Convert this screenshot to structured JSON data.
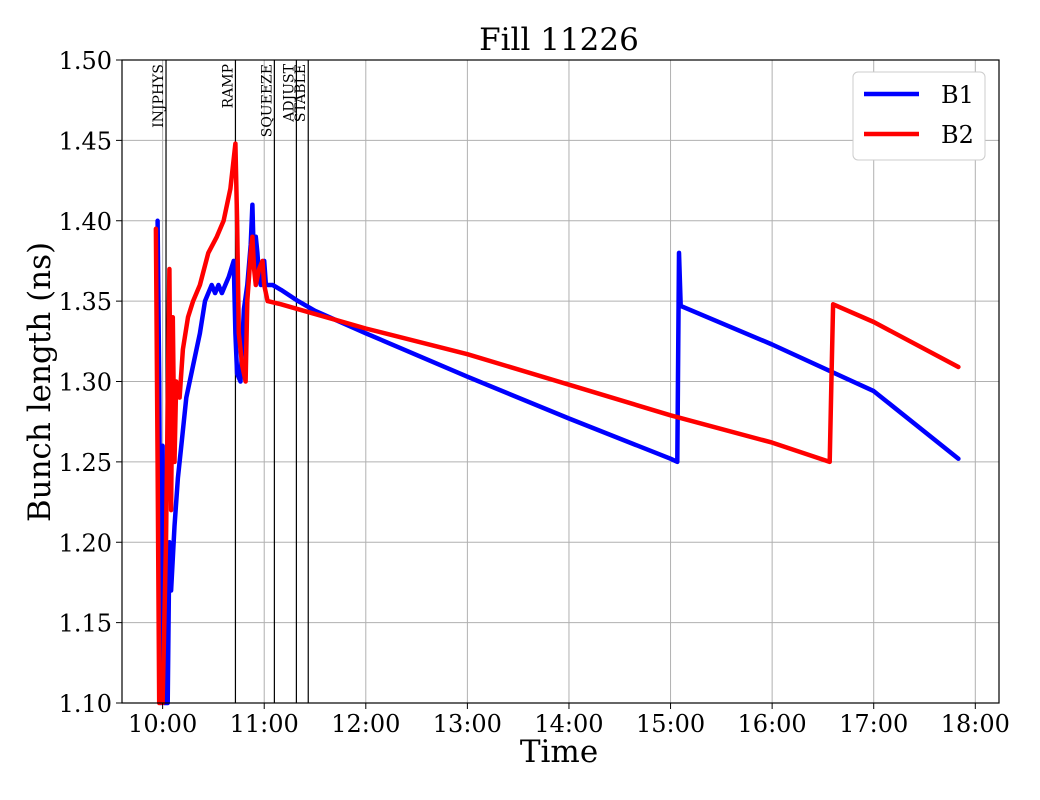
{
  "chart_data": {
    "type": "line",
    "title": "Fill 11226",
    "xlabel": "Time",
    "ylabel": "Bunch length (ns)",
    "xlim": [
      "09:36",
      "18:14"
    ],
    "ylim": [
      1.1,
      1.5
    ],
    "x_ticks": [
      "10:00",
      "11:00",
      "12:00",
      "13:00",
      "14:00",
      "15:00",
      "16:00",
      "17:00",
      "18:00"
    ],
    "y_ticks": [
      "1.10",
      "1.15",
      "1.20",
      "1.25",
      "1.30",
      "1.35",
      "1.40",
      "1.45",
      "1.50"
    ],
    "grid": true,
    "legend_position": "top-right",
    "phases": [
      {
        "label": "INJPHYS",
        "time": "10:02"
      },
      {
        "label": "RAMP",
        "time": "10:43"
      },
      {
        "label": "SQUEEZE",
        "time": "11:06"
      },
      {
        "label": "ADJUST",
        "time": "11:19"
      },
      {
        "label": "STABLE",
        "time": "11:26"
      }
    ],
    "series": [
      {
        "name": "B1",
        "color": "#0000ff",
        "points": [
          [
            "09:57",
            1.4
          ],
          [
            "09:58",
            1.3
          ],
          [
            "09:59",
            1.1
          ],
          [
            "10:00",
            1.26
          ],
          [
            "10:01",
            1.1
          ],
          [
            "10:03",
            1.1
          ],
          [
            "10:04",
            1.2
          ],
          [
            "10:05",
            1.17
          ],
          [
            "10:07",
            1.21
          ],
          [
            "10:09",
            1.24
          ],
          [
            "10:11",
            1.26
          ],
          [
            "10:14",
            1.29
          ],
          [
            "10:18",
            1.31
          ],
          [
            "10:22",
            1.33
          ],
          [
            "10:25",
            1.35
          ],
          [
            "10:27",
            1.355
          ],
          [
            "10:29",
            1.36
          ],
          [
            "10:31",
            1.355
          ],
          [
            "10:33",
            1.36
          ],
          [
            "10:35",
            1.355
          ],
          [
            "10:37",
            1.36
          ],
          [
            "10:39",
            1.365
          ],
          [
            "10:42",
            1.375
          ],
          [
            "10:43",
            1.33
          ],
          [
            "10:44",
            1.305
          ],
          [
            "10:46",
            1.3
          ],
          [
            "10:48",
            1.345
          ],
          [
            "10:50",
            1.36
          ],
          [
            "10:52",
            1.385
          ],
          [
            "10:53",
            1.41
          ],
          [
            "10:54",
            1.37
          ],
          [
            "10:55",
            1.39
          ],
          [
            "10:56",
            1.38
          ],
          [
            "10:57",
            1.365
          ],
          [
            "10:58",
            1.36
          ],
          [
            "10:59",
            1.37
          ],
          [
            "11:00",
            1.375
          ],
          [
            "11:01",
            1.36
          ],
          [
            "11:02",
            1.36
          ],
          [
            "11:05",
            1.36
          ],
          [
            "11:10",
            1.357
          ],
          [
            "11:20",
            1.35
          ],
          [
            "11:30",
            1.344
          ],
          [
            "12:00",
            1.33
          ],
          [
            "13:00",
            1.303
          ],
          [
            "14:00",
            1.277
          ],
          [
            "15:00",
            1.252
          ],
          [
            "15:04",
            1.25
          ],
          [
            "15:05",
            1.38
          ],
          [
            "15:06",
            1.347
          ],
          [
            "16:00",
            1.323
          ],
          [
            "17:00",
            1.294
          ],
          [
            "17:50",
            1.252
          ]
        ]
      },
      {
        "name": "B2",
        "color": "#ff0000",
        "points": [
          [
            "09:56",
            1.395
          ],
          [
            "09:57",
            1.25
          ],
          [
            "09:58",
            1.1
          ],
          [
            "09:59",
            1.115
          ],
          [
            "10:00",
            1.1
          ],
          [
            "10:02",
            1.2
          ],
          [
            "10:04",
            1.37
          ],
          [
            "10:05",
            1.22
          ],
          [
            "10:06",
            1.34
          ],
          [
            "10:07",
            1.25
          ],
          [
            "10:08",
            1.3
          ],
          [
            "10:10",
            1.29
          ],
          [
            "10:12",
            1.32
          ],
          [
            "10:15",
            1.34
          ],
          [
            "10:18",
            1.35
          ],
          [
            "10:22",
            1.36
          ],
          [
            "10:27",
            1.38
          ],
          [
            "10:32",
            1.39
          ],
          [
            "10:36",
            1.4
          ],
          [
            "10:40",
            1.42
          ],
          [
            "10:43",
            1.448
          ],
          [
            "10:44",
            1.4
          ],
          [
            "10:45",
            1.33
          ],
          [
            "10:47",
            1.31
          ],
          [
            "10:49",
            1.3
          ],
          [
            "10:50",
            1.35
          ],
          [
            "10:52",
            1.38
          ],
          [
            "10:53",
            1.39
          ],
          [
            "10:54",
            1.37
          ],
          [
            "10:55",
            1.36
          ],
          [
            "10:57",
            1.37
          ],
          [
            "10:59",
            1.375
          ],
          [
            "11:00",
            1.36
          ],
          [
            "11:01",
            1.355
          ],
          [
            "11:02",
            1.35
          ],
          [
            "11:10",
            1.348
          ],
          [
            "11:20",
            1.345
          ],
          [
            "11:40",
            1.339
          ],
          [
            "12:00",
            1.333
          ],
          [
            "13:00",
            1.317
          ],
          [
            "14:00",
            1.298
          ],
          [
            "15:00",
            1.279
          ],
          [
            "16:00",
            1.262
          ],
          [
            "16:34",
            1.25
          ],
          [
            "16:35",
            1.3
          ],
          [
            "16:36",
            1.348
          ],
          [
            "17:00",
            1.337
          ],
          [
            "17:50",
            1.309
          ]
        ]
      }
    ]
  }
}
